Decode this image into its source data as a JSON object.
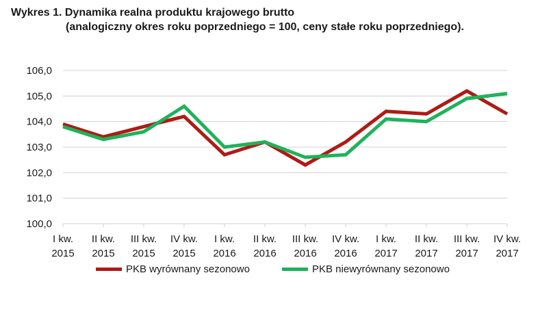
{
  "title": {
    "line1": "Wykres 1. Dynamika realna produktu krajowego brutto",
    "line2": "(analogiczny okres roku poprzedniego = 100, ceny stałe roku poprzedniego)."
  },
  "colors": {
    "series_red": "#b01a16",
    "series_green": "#1fb25a",
    "grid": "#d0d0d0"
  },
  "chart_data": {
    "type": "line",
    "categories": [
      [
        "I kw.",
        "2015"
      ],
      [
        "II kw.",
        "2015"
      ],
      [
        "III kw.",
        "2015"
      ],
      [
        "IV kw.",
        "2015"
      ],
      [
        "I kw.",
        "2016"
      ],
      [
        "II kw.",
        "2016"
      ],
      [
        "III kw.",
        "2016"
      ],
      [
        "IV kw.",
        "2016"
      ],
      [
        "I kw.",
        "2017"
      ],
      [
        "II kw.",
        "2017"
      ],
      [
        "III kw.",
        "2017"
      ],
      [
        "IV kw.",
        "2017"
      ]
    ],
    "ylim": [
      100,
      106
    ],
    "yticks": [
      "100,0",
      "101,0",
      "102,0",
      "103,0",
      "104,0",
      "105,0",
      "106,0"
    ],
    "grid": true,
    "legend_position": "bottom",
    "series": [
      {
        "name": "PKB wyrównany sezonowo",
        "color": "#b01a16",
        "values": [
          103.9,
          103.4,
          103.8,
          104.2,
          102.7,
          103.2,
          102.3,
          103.2,
          104.4,
          104.3,
          105.2,
          104.3
        ]
      },
      {
        "name": "PKB niewyrównany sezonowo",
        "color": "#1fb25a",
        "values": [
          103.8,
          103.3,
          103.6,
          104.6,
          103.0,
          103.2,
          102.6,
          102.7,
          104.1,
          104.0,
          104.9,
          105.1
        ]
      }
    ]
  }
}
